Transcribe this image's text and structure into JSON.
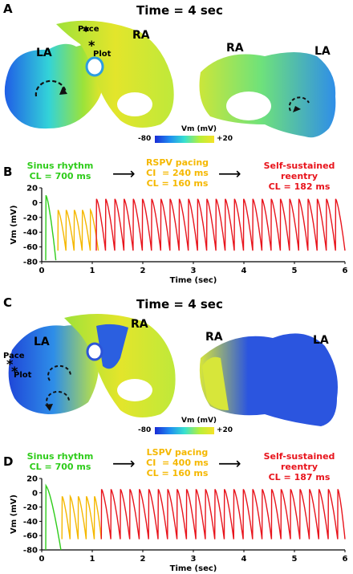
{
  "panels": {
    "A": {
      "letter": "A",
      "time_title": "Time = 4 sec",
      "labels": {
        "la_left": "LA",
        "ra_left": "RA",
        "ra_right": "RA",
        "la_right": "LA",
        "pace": "Pace",
        "plot": "Plot"
      },
      "legend": {
        "title": "Vm (mV)",
        "min": "-80",
        "max": "+20"
      }
    },
    "B": {
      "letter": "B",
      "protocol": {
        "sinus": {
          "line1": "Sinus rhythm",
          "line2": "CL = 700 ms",
          "color": "#2ecc1a"
        },
        "pacing": {
          "line1": "RSPV pacing",
          "line2": "CI  = 240 ms",
          "line3": "CL = 160 ms",
          "color": "#f5b800"
        },
        "reentry": {
          "line1": "Self-sustained reentry",
          "line2": "CL = 182 ms",
          "color": "#e8141c"
        }
      }
    },
    "C": {
      "letter": "C",
      "time_title": "Time = 4 sec",
      "labels": {
        "la_left": "LA",
        "ra_left": "RA",
        "ra_right": "RA",
        "la_right": "LA",
        "pace": "Pace",
        "plot": "Plot"
      },
      "legend": {
        "title": "Vm (mV)",
        "min": "-80",
        "max": "+20"
      }
    },
    "D": {
      "letter": "D",
      "protocol": {
        "sinus": {
          "line1": "Sinus rhythm",
          "line2": "CL = 700 ms",
          "color": "#2ecc1a"
        },
        "pacing": {
          "line1": "LSPV pacing",
          "line2": "CI  = 400 ms",
          "line3": "CL = 160 ms",
          "color": "#f5b800"
        },
        "reentry": {
          "line1": "Self-sustained reentry",
          "line2": "CL = 187 ms",
          "color": "#e8141c"
        }
      }
    }
  },
  "chart_data": [
    {
      "type": "line",
      "panel": "B",
      "xlabel": "Time (sec)",
      "ylabel": "Vm (mV)",
      "xlim": [
        0,
        6
      ],
      "ylim": [
        -80,
        20
      ],
      "xticks": [
        0,
        1,
        2,
        3,
        4,
        5,
        6
      ],
      "yticks": [
        20,
        0,
        -20,
        -40,
        -60,
        -80
      ],
      "grid": false,
      "series": [
        {
          "color": "#2ecc1a",
          "upstrokes": [
            0.08
          ],
          "peak": 10,
          "rest": -78,
          "end": 0.28
        },
        {
          "color": "#f5b800",
          "upstrokes": [
            0.32,
            0.48,
            0.64,
            0.8,
            0.96
          ],
          "peak": -10,
          "rest": -65,
          "end": 1.12
        },
        {
          "color": "#e8141c",
          "start": 1.08,
          "cl": 0.182,
          "end": 6.0,
          "peak": 5,
          "rest": -65
        }
      ]
    },
    {
      "type": "line",
      "panel": "D",
      "xlabel": "Time (sec)",
      "ylabel": "Vm (mV)",
      "xlim": [
        0,
        6
      ],
      "ylim": [
        -80,
        20
      ],
      "xticks": [
        0,
        1,
        2,
        3,
        4,
        5,
        6
      ],
      "yticks": [
        20,
        0,
        -20,
        -40,
        -60,
        -80
      ],
      "grid": false,
      "series": [
        {
          "color": "#2ecc1a",
          "upstrokes": [
            0.08
          ],
          "peak": 10,
          "rest": -80,
          "end": 0.38
        },
        {
          "color": "#f5b800",
          "upstrokes": [
            0.4,
            0.56,
            0.72,
            0.88,
            1.04
          ],
          "peak": -5,
          "rest": -65,
          "end": 1.18
        },
        {
          "color": "#e8141c",
          "start": 1.18,
          "cl": 0.187,
          "end": 6.0,
          "peak": 5,
          "rest": -65
        }
      ]
    }
  ]
}
